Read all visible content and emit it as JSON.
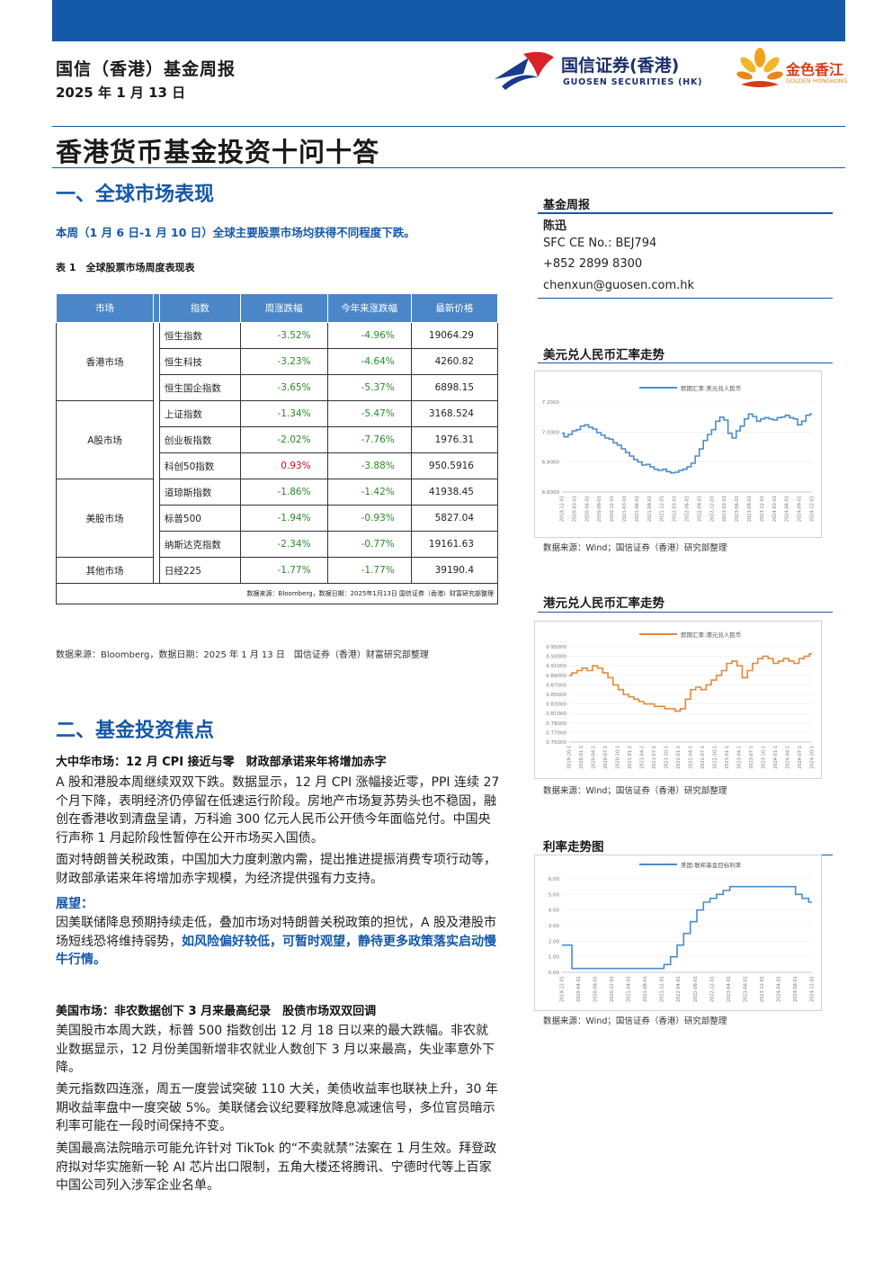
{
  "header": {
    "title": "国信（香港）基金周报",
    "date": "2025 年 1 月 13 日",
    "logo1_cn": "国信证券(香港)",
    "logo1_en": "GUOSEN SECURITIES (HK)",
    "logo2_cn": "金色香江",
    "logo2_en": "GOLDEN HONGKONG"
  },
  "main_title": "香港货币基金投资十问十答",
  "section1": {
    "title": "一、全球市场表现",
    "intro": "本周（1 月 6 日-1 月 10 日）全球主要股票市场均获得不同程度下跌。",
    "table_caption": "表 1　全球股票市场周度表现表",
    "table": {
      "headers": [
        "市场",
        "指数",
        "周涨跌幅",
        "今年来涨跌幅",
        "最新价格"
      ],
      "groups": [
        {
          "market": "香港市场",
          "rows": [
            {
              "index": "恒生指数",
              "week": "-3.52%",
              "ytd": "-4.96%",
              "price": "19064.29"
            },
            {
              "index": "恒生科技",
              "week": "-3.23%",
              "ytd": "-4.64%",
              "price": "4260.82"
            },
            {
              "index": "恒生国企指数",
              "week": "-3.65%",
              "ytd": "-5.37%",
              "price": "6898.15"
            }
          ]
        },
        {
          "market": "A股市场",
          "rows": [
            {
              "index": "上证指数",
              "week": "-1.34%",
              "ytd": "-5.47%",
              "price": "3168.524"
            },
            {
              "index": "创业板指数",
              "week": "-2.02%",
              "ytd": "-7.76%",
              "price": "1976.31"
            },
            {
              "index": "科创50指数",
              "week": "0.93%",
              "ytd": "-3.88%",
              "price": "950.5916"
            }
          ]
        },
        {
          "market": "美股市场",
          "rows": [
            {
              "index": "道琼斯指数",
              "week": "-1.86%",
              "ytd": "-1.42%",
              "price": "41938.45"
            },
            {
              "index": "标普500",
              "week": "-1.94%",
              "ytd": "-0.93%",
              "price": "5827.04"
            },
            {
              "index": "纳斯达克指数",
              "week": "-2.34%",
              "ytd": "-0.77%",
              "price": "19161.63"
            }
          ]
        },
        {
          "market": "其他市场",
          "rows": [
            {
              "index": "日经225",
              "week": "-1.77%",
              "ytd": "-1.77%",
              "price": "39190.4"
            }
          ]
        }
      ],
      "note": "数据来源：Bloomberg，数据日期：2025年1月13日 国信证券（香港）财富研究部整理"
    },
    "source": "数据来源：Bloomberg，数据日期：2025 年 1 月 13 日　国信证券（香港）财富研究部整理"
  },
  "section2": {
    "title": "二、基金投资焦点",
    "china_head": "大中华市场：12 月 CPI 接近与零　财政部承诺来年将增加赤字",
    "china_p1": "A 股和港股本周继续双双下跌。数据显示，12 月 CPI 涨幅接近零，PPI 连续 27 个月下降，表明经济仍停留在低速运行阶段。房地产市场复苏势头也不稳固，融创在香港收到清盘呈请，万科逾 300 亿元人民币公开债今年面临兑付。中国央行声称 1 月起阶段性暂停在公开市场买入国债。",
    "china_p2": "面对特朗普关税政策，中国加大力度刺激内需，提出推进提振消费专项行动等，财政部承诺来年将增加赤字规模，为经济提供强有力支持。",
    "outlook_label": "展望：",
    "outlook_text": "因美联储降息预期持续走低，叠加市场对特朗普关税政策的担忧，A 股及港股市场短线恐将维持弱势，",
    "outlook_blue": "如风险偏好较低，可暂时观望，静待更多政策落实启动慢牛行情。",
    "us_head": "美国市场：非农数据创下 3 月来最高纪录　股债市场双双回调",
    "us_p1": "美国股市本周大跌，标普 500 指数创出 12 月 18 日以来的最大跌幅。非农就业数据显示，12 月份美国新增非农就业人数创下 3 月以来最高，失业率意外下降。",
    "us_p2": "美元指数四连涨，周五一度尝试突破 110 大关，美债收益率也联袂上升，30 年期收益率盘中一度突破 5%。美联储会议纪要释放降息减速信号，多位官员暗示利率可能在一段时间保持不变。",
    "us_p3": "美国最高法院暗示可能允许针对 TikTok 的“不卖就禁”法案在 1 月生效。拜登政府拟对华实施新一轮 AI 芯片出口限制，五角大楼还将腾讯、宁德时代等上百家中国公司列入涉军企业名单。"
  },
  "sidebar": {
    "label": "基金周报",
    "author": "陈迅",
    "sfc": "SFC CE No.: BEJ794",
    "phone": "+852 2899 8300",
    "email": "chenxun@guosen.com.hk",
    "source": "数据来源：Wind；国信证券（香港）研究部整理"
  },
  "chart_data": [
    {
      "type": "line",
      "title": "美元兑人民币汇率走势",
      "series": [
        {
          "name": "即期汇率:美元兑人民币",
          "values": [
            6.98,
            6.92,
            6.96,
            7.02,
            7.04,
            7.1,
            7.12,
            7.08,
            7.05,
            6.99,
            6.95,
            6.9,
            6.88,
            6.82,
            6.78,
            6.72,
            6.66,
            6.6,
            6.54,
            6.5,
            6.45,
            6.46,
            6.42,
            6.38,
            6.36,
            6.38,
            6.34,
            6.32,
            6.33,
            6.36,
            6.38,
            6.42,
            6.48,
            6.6,
            6.72,
            6.86,
            6.96,
            7.04,
            7.18,
            7.25,
            7.2,
            6.98,
            6.9,
            7.02,
            7.1,
            7.22,
            7.3,
            7.26,
            7.18,
            7.22,
            7.24,
            7.22,
            7.2,
            7.24,
            7.25,
            7.28,
            7.24,
            7.22,
            7.12,
            7.18,
            7.28,
            7.3
          ]
        }
      ],
      "color": "#4a8cd0",
      "ytick_labels": [
        "7.2000",
        "7.0000",
        "6.8000",
        "6.6000"
      ],
      "ylim": [
        6.0,
        7.5
      ],
      "xticks": [
        "2019-12-01",
        "2020-03-01",
        "2020-06-01",
        "2020-09-01",
        "2020-12-01",
        "2021-03-01",
        "2021-06-01",
        "2021-09-01",
        "2021-12-01",
        "2022-03-01",
        "2022-06-01",
        "2022-09-01",
        "2022-12-01",
        "2023-03-01",
        "2023-06-01",
        "2023-09-01",
        "2023-12-01",
        "2024-03-01",
        "2024-06-01",
        "2024-09-01",
        "2024-12-01"
      ]
    },
    {
      "type": "line",
      "title": "港元兑人民币汇率走势",
      "series": [
        {
          "name": "即期汇率:港元兑人民币",
          "values": [
            0.89,
            0.895,
            0.9,
            0.905,
            0.9,
            0.91,
            0.905,
            0.895,
            0.885,
            0.87,
            0.86,
            0.85,
            0.845,
            0.84,
            0.835,
            0.83,
            0.83,
            0.825,
            0.825,
            0.82,
            0.82,
            0.815,
            0.82,
            0.84,
            0.86,
            0.865,
            0.86,
            0.87,
            0.88,
            0.89,
            0.9,
            0.915,
            0.92,
            0.91,
            0.885,
            0.9,
            0.915,
            0.925,
            0.93,
            0.925,
            0.915,
            0.92,
            0.925,
            0.92,
            0.915,
            0.925,
            0.93,
            0.935
          ]
        }
      ],
      "color": "#e08a3c",
      "ytick_labels": [
        "0.95000",
        "0.93000",
        "0.91000",
        "0.89000",
        "0.87000",
        "0.85000",
        "0.83000",
        "0.81000",
        "0.79000",
        "0.77000",
        "0.75000"
      ],
      "ylim": [
        0.75,
        0.95
      ],
      "xticks": [
        "2019-10-1",
        "2020-01-1",
        "2020-04-1",
        "2020-07-1",
        "2020-10-1",
        "2021-01-1",
        "2021-04-1",
        "2021-07-1",
        "2021-10-1",
        "2022-01-1",
        "2022-04-1",
        "2022-07-1",
        "2022-10-1",
        "2023-01-1",
        "2023-04-1",
        "2023-07-1",
        "2023-10-1",
        "2024-01-1",
        "2024-04-1",
        "2024-07-1",
        "2024-10-1"
      ]
    },
    {
      "type": "line",
      "title": "利率走势图",
      "series": [
        {
          "name": "美国:联邦基金目标利率",
          "values": [
            1.75,
            1.75,
            0.25,
            0.25,
            0.25,
            0.25,
            0.25,
            0.25,
            0.25,
            0.25,
            0.25,
            0.25,
            0.25,
            0.25,
            0.25,
            0.25,
            0.5,
            1.0,
            1.75,
            2.5,
            3.25,
            4.0,
            4.5,
            4.75,
            5.0,
            5.25,
            5.5,
            5.5,
            5.5,
            5.5,
            5.5,
            5.5,
            5.5,
            5.5,
            5.5,
            5.5,
            5.0,
            4.75,
            4.5
          ]
        }
      ],
      "color": "#4a8cd0",
      "ytick_labels": [
        "6.00",
        "5.00",
        "4.00",
        "3.00",
        "2.00",
        "1.00",
        "0.00"
      ],
      "ylim": [
        0,
        6
      ],
      "xticks": [
        "2019-12-01",
        "2020-04-01",
        "2020-08-01",
        "2020-12-01",
        "2021-04-01",
        "2021-08-01",
        "2021-12-01",
        "2022-04-01",
        "2022-08-01",
        "2022-12-01",
        "2023-04-01",
        "2023-08-01",
        "2023-12-01",
        "2024-04-01",
        "2024-08-01",
        "2024-12-01"
      ]
    }
  ]
}
